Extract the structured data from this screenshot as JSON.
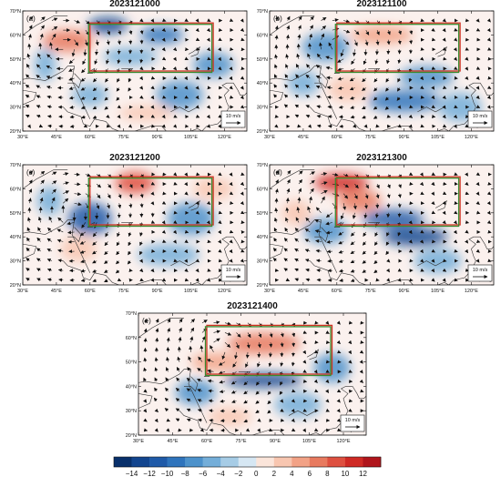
{
  "figure": {
    "panels": [
      {
        "letter": "(a)",
        "title": "2023121000"
      },
      {
        "letter": "(b)",
        "title": "2023121100"
      },
      {
        "letter": "(c)",
        "title": "2023121200"
      },
      {
        "letter": "(d)",
        "title": "2023121300"
      },
      {
        "letter": "(e)",
        "title": "2023121400"
      }
    ],
    "lon_ticks": [
      "30°E",
      "45°E",
      "60°E",
      "75°E",
      "90°E",
      "105°E",
      "120°E"
    ],
    "lat_ticks": [
      "70°N",
      "60°N",
      "50°N",
      "40°N",
      "30°N",
      "20°N"
    ],
    "domain": {
      "lon": [
        30,
        130
      ],
      "lat": [
        20,
        70
      ]
    },
    "reference_vector": {
      "label": "10 m/s",
      "speed": 10
    },
    "boxes": [
      {
        "role": "red box",
        "color": "#d03020",
        "lon": [
          60,
          115
        ],
        "lat": [
          45,
          65
        ]
      },
      {
        "role": "green box",
        "color": "#3a8a30",
        "lon": [
          60,
          115
        ],
        "lat": [
          45,
          65
        ]
      }
    ],
    "colorbar": {
      "labels": [
        "−14",
        "−12",
        "−10",
        "−8",
        "−6",
        "−4",
        "−2",
        "0",
        "2",
        "4",
        "6",
        "8",
        "10",
        "12"
      ],
      "colors": [
        "#08306b",
        "#12458f",
        "#1f5aa8",
        "#2f74bc",
        "#4d92cb",
        "#74aed9",
        "#a6cce6",
        "#d6e7f3",
        "#fbe5da",
        "#f8c6b0",
        "#f2a286",
        "#e87a5f",
        "#de5040",
        "#cf2a25",
        "#b0151c"
      ]
    },
    "colors": {
      "land_outline": "#333333",
      "arrow": "#111111"
    }
  }
}
